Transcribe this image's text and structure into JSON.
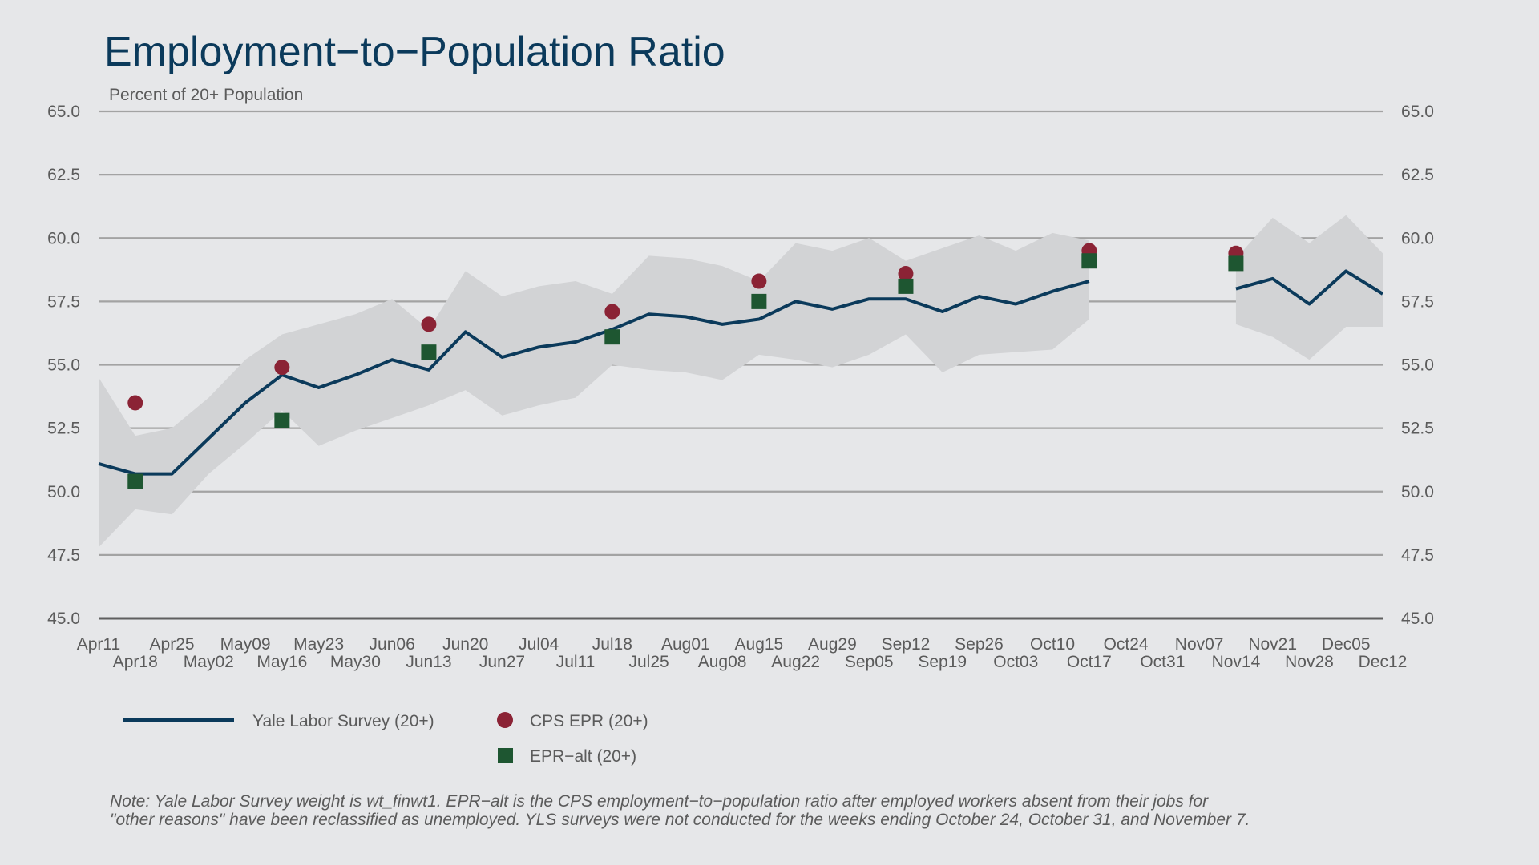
{
  "chart_data": {
    "type": "line",
    "title": "Employment−to−Population Ratio",
    "subtitle": "Percent of 20+ Population",
    "ylim": [
      45,
      65
    ],
    "y_ticks": [
      "45.0",
      "47.5",
      "50.0",
      "52.5",
      "55.0",
      "57.5",
      "60.0",
      "62.5",
      "65.0"
    ],
    "y_tick_values": [
      45,
      47.5,
      50,
      52.5,
      55,
      57.5,
      60,
      62.5,
      65
    ],
    "y_axis_sides": "left and right",
    "grid": true,
    "categories": [
      "Apr11",
      "Apr18",
      "Apr25",
      "May02",
      "May09",
      "May16",
      "May23",
      "May30",
      "Jun06",
      "Jun13",
      "Jun20",
      "Jun27",
      "Jul04",
      "Jul11",
      "Jul18",
      "Jul25",
      "Aug01",
      "Aug08",
      "Aug15",
      "Aug22",
      "Aug29",
      "Sep05",
      "Sep12",
      "Sep19",
      "Sep26",
      "Oct03",
      "Oct10",
      "Oct17",
      "Oct24",
      "Oct31",
      "Nov07",
      "Nov14",
      "Nov21",
      "Nov28",
      "Dec05",
      "Dec12"
    ],
    "series": [
      {
        "name": "Yale Labor Survey (20+)",
        "kind": "line",
        "color": "#0b3a5b",
        "values": [
          51.1,
          50.7,
          50.7,
          52.1,
          53.5,
          54.6,
          54.1,
          54.6,
          55.2,
          54.8,
          56.3,
          55.3,
          55.7,
          55.9,
          56.4,
          57.0,
          56.9,
          56.6,
          56.8,
          57.5,
          57.2,
          57.6,
          57.6,
          57.1,
          57.7,
          57.4,
          57.9,
          58.3,
          null,
          null,
          null,
          58.0,
          58.4,
          57.4,
          58.7,
          57.8
        ]
      },
      {
        "name": "confidence band",
        "kind": "band",
        "color": "#d2d3d5",
        "upper": [
          54.5,
          52.2,
          52.5,
          53.7,
          55.2,
          56.2,
          56.6,
          57.0,
          57.6,
          56.4,
          58.7,
          57.7,
          58.1,
          58.3,
          57.8,
          59.3,
          59.2,
          58.9,
          58.3,
          59.8,
          59.5,
          60.0,
          59.1,
          59.6,
          60.1,
          59.5,
          60.2,
          59.9,
          null,
          null,
          null,
          59.2,
          60.8,
          59.8,
          60.9,
          59.4
        ],
        "lower": [
          47.8,
          49.3,
          49.1,
          50.7,
          51.9,
          53.2,
          51.8,
          52.4,
          52.9,
          53.4,
          54.0,
          53.0,
          53.4,
          53.7,
          55.0,
          54.8,
          54.7,
          54.4,
          55.4,
          55.2,
          54.9,
          55.4,
          56.2,
          54.7,
          55.4,
          55.5,
          55.6,
          56.8,
          null,
          null,
          null,
          56.6,
          56.1,
          55.2,
          56.5,
          56.5
        ]
      },
      {
        "name": "CPS EPR (20+)",
        "kind": "points",
        "marker": "circle",
        "color": "#8b2335",
        "points": [
          [
            "Apr18",
            53.5
          ],
          [
            "May16",
            54.9
          ],
          [
            "Jun13",
            56.6
          ],
          [
            "Jul18",
            57.1
          ],
          [
            "Aug15",
            58.3
          ],
          [
            "Sep12",
            58.6
          ],
          [
            "Oct17",
            59.5
          ],
          [
            "Nov14",
            59.4
          ]
        ]
      },
      {
        "name": "EPR−alt (20+)",
        "kind": "points",
        "marker": "square",
        "color": "#1e5631",
        "points": [
          [
            "Apr18",
            50.4
          ],
          [
            "May16",
            52.8
          ],
          [
            "Jun13",
            55.5
          ],
          [
            "Jul18",
            56.1
          ],
          [
            "Aug15",
            57.5
          ],
          [
            "Sep12",
            58.1
          ],
          [
            "Oct17",
            59.1
          ],
          [
            "Nov14",
            59.0
          ]
        ]
      }
    ]
  },
  "legend": {
    "yls_label": "Yale Labor Survey (20+)",
    "cps_label": "CPS EPR (20+)",
    "alt_label": "EPR−alt (20+)"
  },
  "note": {
    "line1": "Note: Yale Labor Survey weight is wt_finwt1. EPR−alt is the CPS employment−to−population ratio after employed workers absent from their jobs for",
    "line2": "\"other reasons\" have been reclassified as unemployed. YLS surveys were not conducted for the weeks ending October 24, October 31, and November 7."
  },
  "colors": {
    "background": "#e6e7e9",
    "title": "#0b3a5b",
    "band": "#d2d3d5",
    "line": "#0b3a5b",
    "cps": "#8b2335",
    "alt": "#1e5631"
  }
}
